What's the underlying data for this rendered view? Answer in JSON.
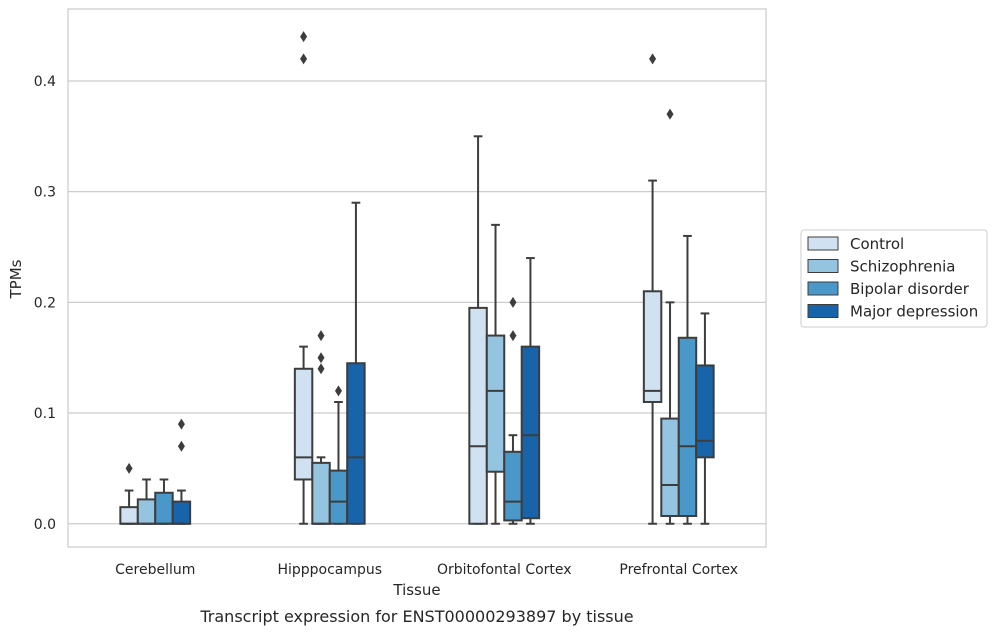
{
  "caption": "Transcript expression for ENST00000293897 by tissue",
  "chart_data": {
    "type": "box",
    "xlabel": "Tissue",
    "ylabel": "TPMs",
    "ylim": [
      -0.021,
      0.465
    ],
    "yticks": [
      "0.0",
      "0.1",
      "0.2",
      "0.3",
      "0.4"
    ],
    "ytick_values": [
      0.0,
      0.1,
      0.2,
      0.3,
      0.4
    ],
    "grid": "horizontal",
    "legend_placement": "right",
    "categories": [
      "Cerebellum",
      "Hipppocampus",
      "Orbitofontal Cortex",
      "Prefrontal Cortex"
    ],
    "series": [
      {
        "name": "Control",
        "color": "#d0e1f2",
        "boxes": [
          {
            "whislo": 0.0,
            "q1": 0.0,
            "med": 0.0,
            "q3": 0.015,
            "whishi": 0.03,
            "fliers": [
              0.05
            ]
          },
          {
            "whislo": 0.0,
            "q1": 0.04,
            "med": 0.06,
            "q3": 0.14,
            "whishi": 0.16,
            "fliers": [
              0.42,
              0.44
            ]
          },
          {
            "whislo": 0.0,
            "q1": 0.0,
            "med": 0.07,
            "q3": 0.195,
            "whishi": 0.35,
            "fliers": []
          },
          {
            "whislo": 0.0,
            "q1": 0.11,
            "med": 0.12,
            "q3": 0.21,
            "whishi": 0.31,
            "fliers": [
              0.42
            ]
          }
        ]
      },
      {
        "name": "Schizophrenia",
        "color": "#94c4df",
        "boxes": [
          {
            "whislo": 0.0,
            "q1": 0.0,
            "med": 0.0,
            "q3": 0.022,
            "whishi": 0.04,
            "fliers": []
          },
          {
            "whislo": 0.0,
            "q1": 0.0,
            "med": 0.0,
            "q3": 0.055,
            "whishi": 0.06,
            "fliers": [
              0.14,
              0.15,
              0.17
            ]
          },
          {
            "whislo": 0.0,
            "q1": 0.047,
            "med": 0.12,
            "q3": 0.17,
            "whishi": 0.27,
            "fliers": []
          },
          {
            "whislo": 0.0,
            "q1": 0.007,
            "med": 0.035,
            "q3": 0.095,
            "whishi": 0.2,
            "fliers": [
              0.37
            ]
          }
        ]
      },
      {
        "name": "Bipolar disorder",
        "color": "#4a98c9",
        "boxes": [
          {
            "whislo": 0.0,
            "q1": 0.0,
            "med": 0.0,
            "q3": 0.028,
            "whishi": 0.04,
            "fliers": []
          },
          {
            "whislo": 0.0,
            "q1": 0.0,
            "med": 0.02,
            "q3": 0.048,
            "whishi": 0.11,
            "fliers": [
              0.12
            ]
          },
          {
            "whislo": 0.0,
            "q1": 0.003,
            "med": 0.02,
            "q3": 0.065,
            "whishi": 0.08,
            "fliers": [
              0.17,
              0.2
            ]
          },
          {
            "whislo": 0.0,
            "q1": 0.007,
            "med": 0.07,
            "q3": 0.168,
            "whishi": 0.26,
            "fliers": []
          }
        ]
      },
      {
        "name": "Major depression",
        "color": "#1764ab",
        "boxes": [
          {
            "whislo": 0.0,
            "q1": 0.0,
            "med": 0.0,
            "q3": 0.02,
            "whishi": 0.03,
            "fliers": [
              0.07,
              0.09
            ]
          },
          {
            "whislo": 0.0,
            "q1": 0.0,
            "med": 0.06,
            "q3": 0.145,
            "whishi": 0.29,
            "fliers": []
          },
          {
            "whislo": 0.0,
            "q1": 0.005,
            "med": 0.08,
            "q3": 0.16,
            "whishi": 0.24,
            "fliers": []
          },
          {
            "whislo": 0.0,
            "q1": 0.06,
            "med": 0.075,
            "q3": 0.143,
            "whishi": 0.19,
            "fliers": []
          }
        ]
      }
    ]
  }
}
